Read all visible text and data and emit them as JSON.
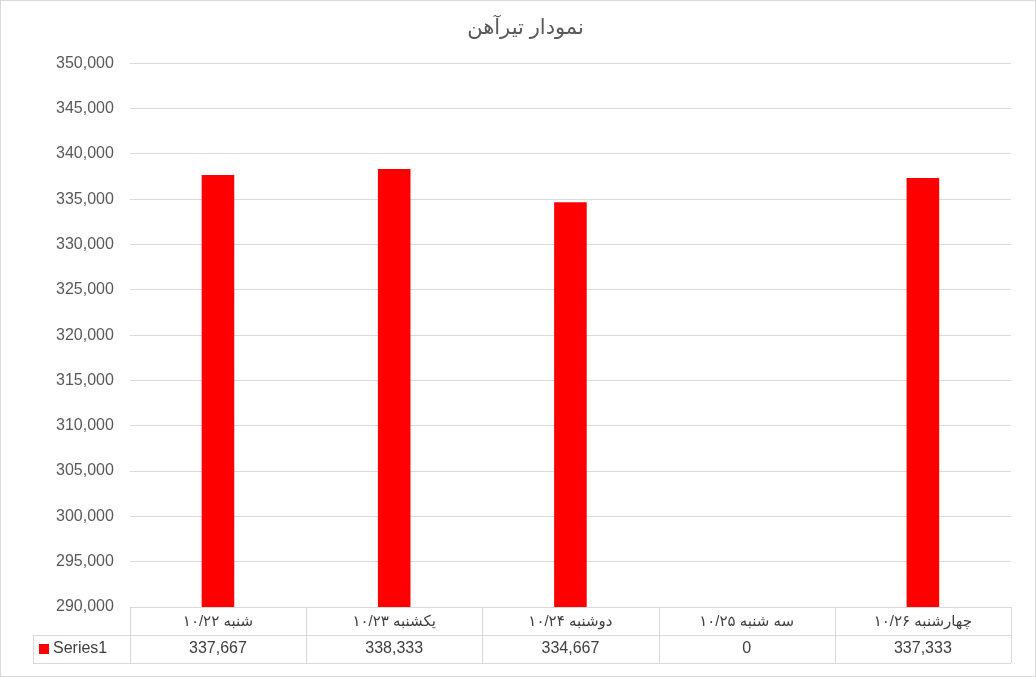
{
  "chart_data": {
    "type": "bar",
    "title": "نمودار تیرآهن",
    "categories": [
      "شنبه ۱۰/۲۲",
      "یکشنبه ۱۰/۲۳",
      "دوشنبه ۱۰/۲۴",
      "سه شنبه ۱۰/۲۵",
      "چهارشنبه ۱۰/۲۶"
    ],
    "series": [
      {
        "name": "Series1",
        "color": "#ff0000",
        "values": [
          337667,
          338333,
          334667,
          null,
          337333
        ],
        "value_labels": [
          "337,667",
          "338,333",
          "334,667",
          "0",
          "337,333"
        ]
      }
    ],
    "ylim": [
      290000,
      350000
    ],
    "yticks": [
      {
        "value": 290000,
        "label": "290,000"
      },
      {
        "value": 295000,
        "label": "295,000"
      },
      {
        "value": 300000,
        "label": "300,000"
      },
      {
        "value": 305000,
        "label": "305,000"
      },
      {
        "value": 310000,
        "label": "310,000"
      },
      {
        "value": 315000,
        "label": "315,000"
      },
      {
        "value": 320000,
        "label": "320,000"
      },
      {
        "value": 325000,
        "label": "325,000"
      },
      {
        "value": 330000,
        "label": "330,000"
      },
      {
        "value": 335000,
        "label": "335,000"
      },
      {
        "value": 340000,
        "label": "340,000"
      },
      {
        "value": 345000,
        "label": "345,000"
      },
      {
        "value": 350000,
        "label": "350,000"
      }
    ],
    "grid": "y",
    "legend": "bottom"
  }
}
